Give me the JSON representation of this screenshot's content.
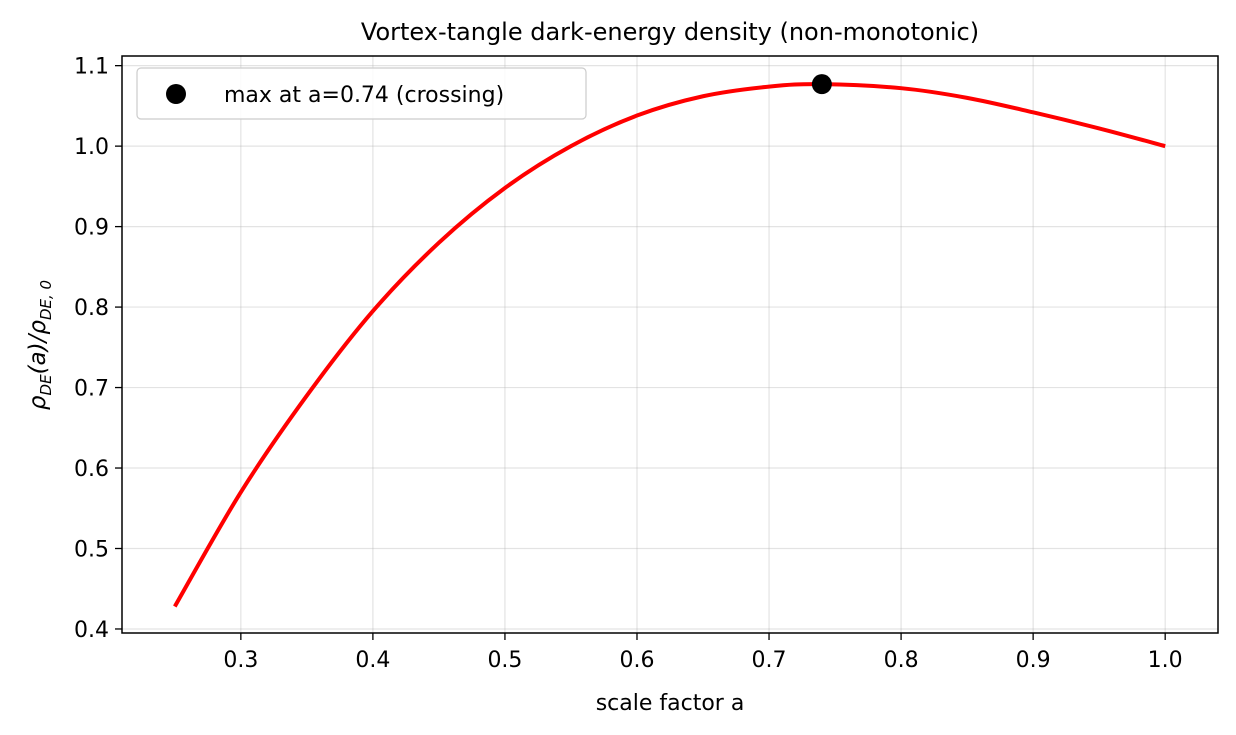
{
  "chart_data": {
    "type": "line",
    "title": "Vortex-tangle dark-energy density (non-monotonic)",
    "xlabel": "scale factor a",
    "ylabel": "ρDE(a)/ρDE,0",
    "xlim": [
      0.21,
      1.04
    ],
    "ylim": [
      0.395,
      1.112
    ],
    "x_ticks": [
      0.3,
      0.4,
      0.5,
      0.6,
      0.7,
      0.8,
      0.9,
      1.0
    ],
    "x_tick_labels": [
      "0.3",
      "0.4",
      "0.5",
      "0.6",
      "0.7",
      "0.8",
      "0.9",
      "1.0"
    ],
    "y_ticks": [
      0.4,
      0.5,
      0.6,
      0.7,
      0.8,
      0.9,
      1.0,
      1.1
    ],
    "y_tick_labels": [
      "0.4",
      "0.5",
      "0.6",
      "0.7",
      "0.8",
      "0.9",
      "1.0",
      "1.1"
    ],
    "grid": true,
    "legend_position": "top-left",
    "series": [
      {
        "style": "line",
        "color": "#ff0000",
        "x": [
          0.25,
          0.3,
          0.35,
          0.4,
          0.45,
          0.5,
          0.55,
          0.6,
          0.65,
          0.7,
          0.74,
          0.8,
          0.85,
          0.9,
          0.95,
          1.0
        ],
        "y": [
          0.428,
          0.57,
          0.69,
          0.795,
          0.88,
          0.948,
          1.0,
          1.038,
          1.062,
          1.074,
          1.077,
          1.072,
          1.06,
          1.042,
          1.022,
          1.0
        ]
      },
      {
        "name": "max at a=0.74 (crossing)",
        "style": "marker",
        "color": "#000000",
        "x": [
          0.74
        ],
        "y": [
          1.077
        ]
      }
    ]
  }
}
